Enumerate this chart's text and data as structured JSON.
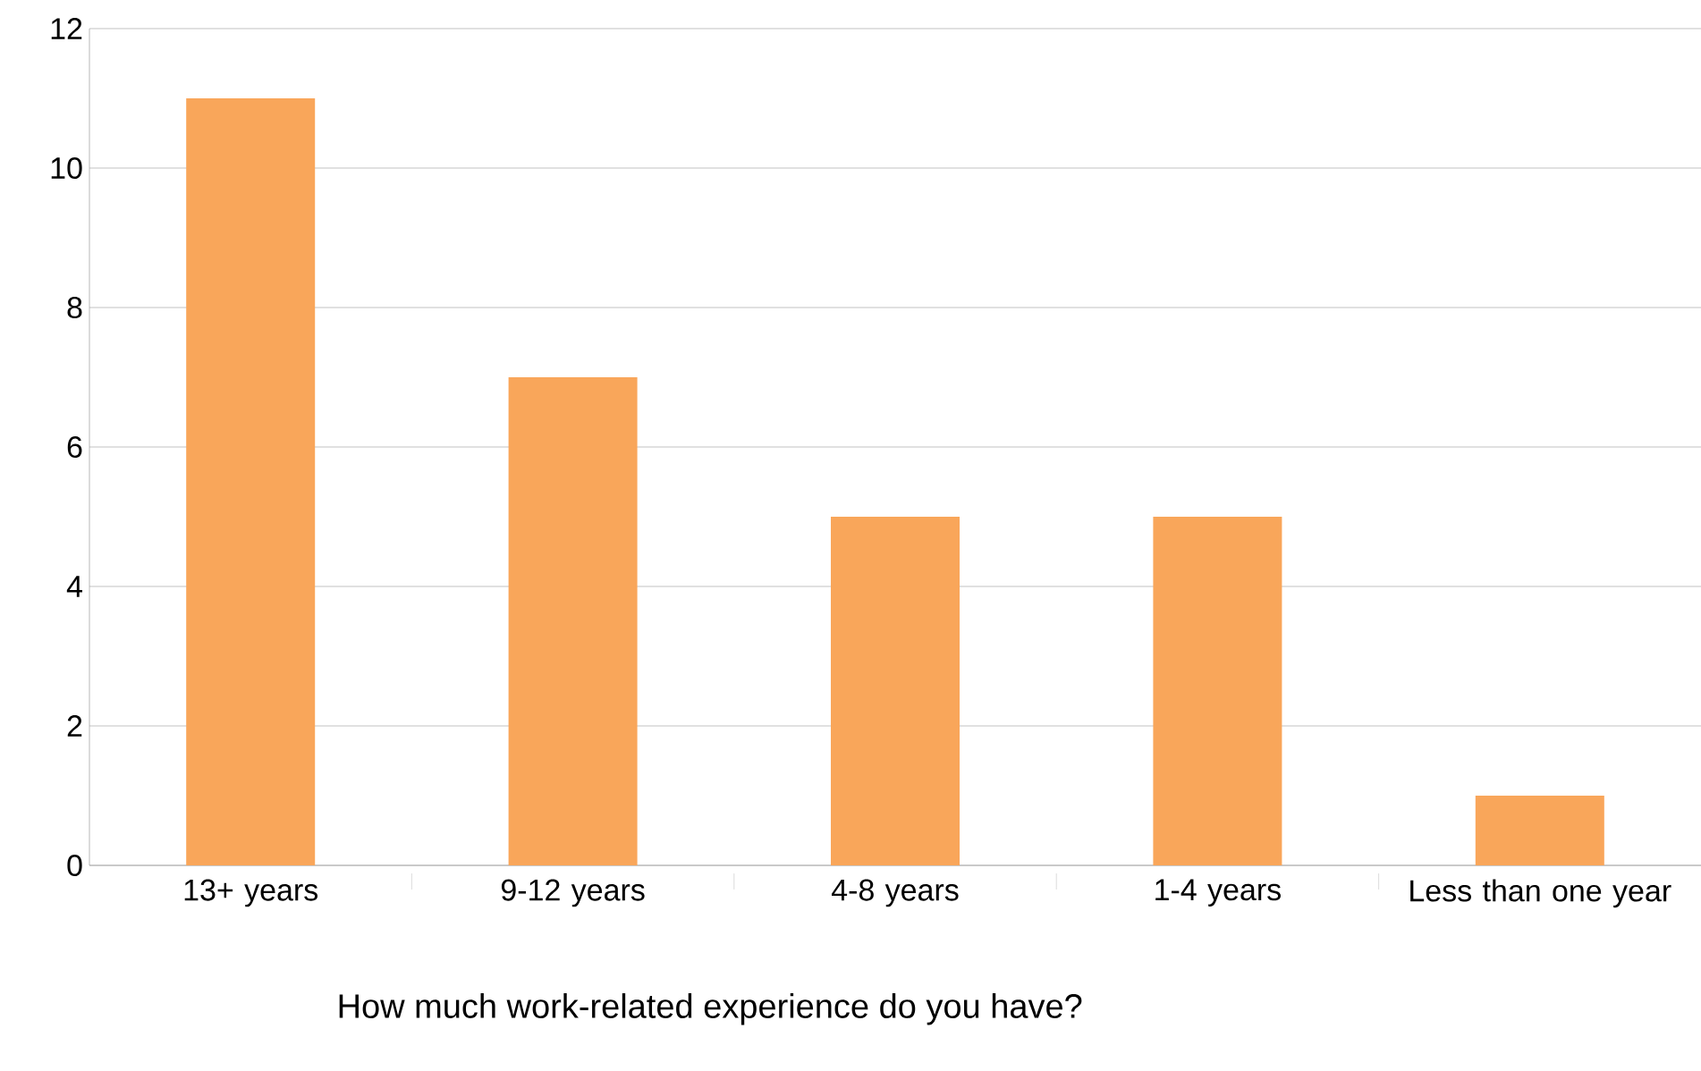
{
  "chart_data": {
    "type": "bar",
    "xlabel": "How much work-related experience do you have?",
    "categories": [
      "13+ years",
      "9-12 years",
      "4-8 years",
      "1-4 years",
      "Less than one year"
    ],
    "values": [
      11,
      7,
      5,
      5,
      1
    ],
    "color": "#f9a65a",
    "ylim": [
      0,
      12
    ],
    "yticks": [
      0,
      2,
      4,
      6,
      8,
      10,
      12
    ],
    "grid": "y"
  }
}
